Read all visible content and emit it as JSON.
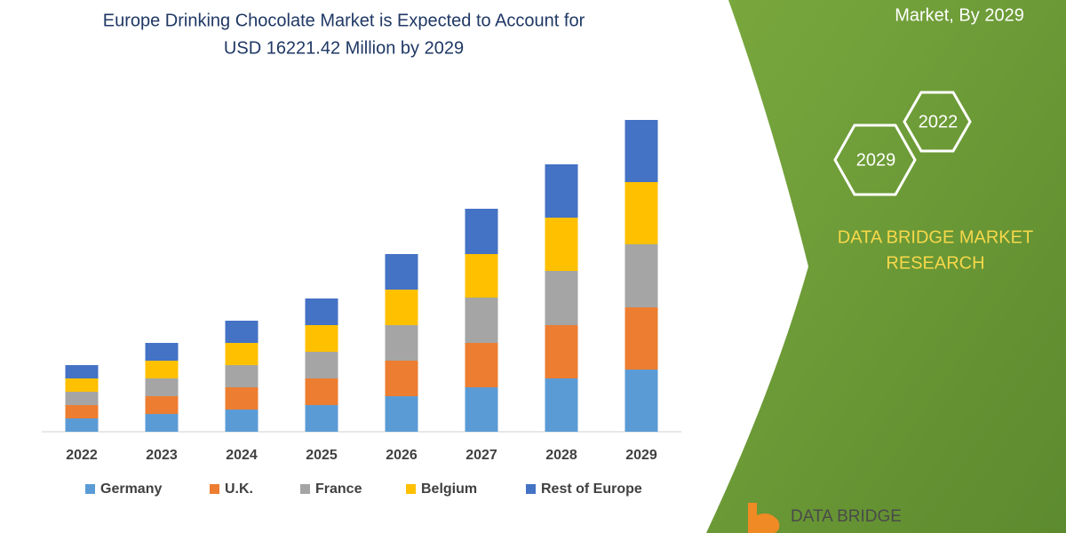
{
  "chart_data": {
    "type": "stacked_bar",
    "title": [
      "Europe Drinking Chocolate Market is Expected to Account for",
      "USD 16221.42 Million by 2029"
    ],
    "categories": [
      "2022",
      "2023",
      "2024",
      "2025",
      "2026",
      "2027",
      "2028",
      "2029"
    ],
    "series": [
      {
        "name": "Germany",
        "color": "#5b9bd5",
        "values": [
          15,
          20,
          25,
          30,
          40,
          50,
          60,
          70
        ]
      },
      {
        "name": "U.K.",
        "color": "#ed7d31",
        "values": [
          15,
          20,
          25,
          30,
          40,
          50,
          60,
          70
        ]
      },
      {
        "name": "France",
        "color": "#a5a5a5",
        "values": [
          15,
          20,
          25,
          30,
          40,
          51,
          61,
          71
        ]
      },
      {
        "name": "Belgium",
        "color": "#ffc000",
        "values": [
          15,
          20,
          25,
          30,
          40,
          49,
          60,
          70
        ]
      },
      {
        "name": "Rest of Europe",
        "color": "#4472c4",
        "values": [
          15,
          20,
          25,
          30,
          40,
          51,
          60,
          70
        ]
      }
    ],
    "ylim": [
      0,
      360
    ],
    "legend": "bottom"
  },
  "panel": {
    "heading": "Market, By 2029",
    "hexagons": [
      "2022",
      "2029"
    ],
    "brand": [
      "DATA BRIDGE MARKET",
      "RESEARCH"
    ],
    "logo": "DATA BRIDGE"
  }
}
